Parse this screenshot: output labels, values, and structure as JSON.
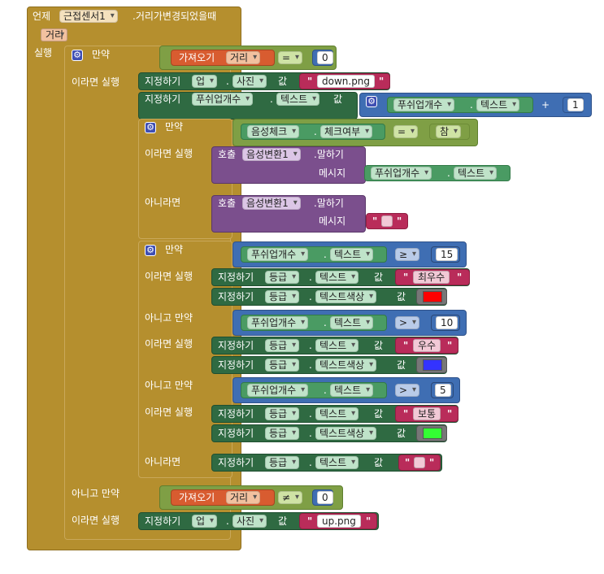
{
  "event": {
    "when": "언제",
    "component": "근접센서1",
    "name": ".거리가변경되었을때",
    "param": "거리",
    "do": "실행"
  },
  "words": {
    "if": "만약",
    "then": "이라면 실행",
    "else_if": "아니고 만약",
    "else": "아니라면",
    "set": "지정하기",
    "get": "가져오기",
    "call": "호출",
    "to": "값",
    "speak": ".말하기",
    "message": "메시지",
    "dot": "."
  },
  "components": {
    "up": "업",
    "image": "사진",
    "counter": "푸쉬업개수",
    "text": "텍스트",
    "checkbox": "음성체크",
    "checked": "체크여부",
    "tts": "음성변환1",
    "grade": "등급",
    "text_color": "텍스트색상",
    "distance": "거리"
  },
  "ops": {
    "eq": "=",
    "neq": "≠",
    "gte": "≥",
    "gt": ">",
    "plus": "+",
    "true": "참"
  },
  "values": {
    "zero": "0",
    "one": "1",
    "fifteen": "15",
    "ten": "10",
    "five": "5",
    "down_png": "down.png",
    "up_png": "up.png",
    "best": "최우수",
    "good": "우수",
    "normal": "보통"
  },
  "colors": {
    "red": "#ff0000",
    "blue": "#3333ff",
    "green": "#33ff33"
  }
}
